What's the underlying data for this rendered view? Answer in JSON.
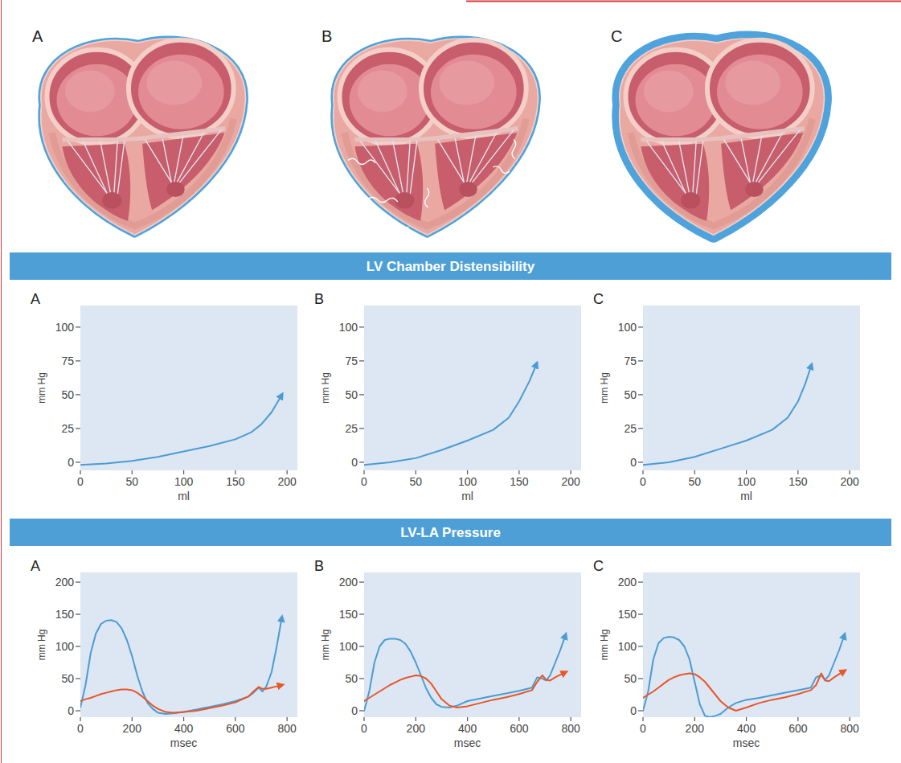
{
  "illustration_labels": [
    "A",
    "B",
    "C"
  ],
  "sections": [
    "LV Chamber Distensibility",
    "LV-LA Pressure"
  ],
  "chart_data": [
    {
      "type": "line",
      "title": "A",
      "xlabel": "ml",
      "ylabel": "mm Hg",
      "x": [
        0,
        25,
        50,
        75,
        100,
        125,
        150,
        165,
        175,
        185,
        195
      ],
      "series": [
        {
          "color": "#4b9cd3",
          "marker": "arrow",
          "values": [
            -2,
            -1,
            1,
            4,
            8,
            12,
            17,
            22,
            28,
            37,
            50
          ]
        }
      ],
      "xlim": [
        0,
        210
      ],
      "xticks": [
        0,
        50,
        100,
        150,
        200
      ],
      "ylim": [
        -6,
        116
      ],
      "yticks": [
        0,
        25,
        50,
        75,
        100
      ],
      "grid": false
    },
    {
      "type": "line",
      "title": "B",
      "xlabel": "ml",
      "ylabel": "mm Hg",
      "x": [
        0,
        25,
        50,
        75,
        100,
        125,
        140,
        150,
        160,
        167
      ],
      "series": [
        {
          "color": "#4b9cd3",
          "marker": "arrow",
          "values": [
            -2,
            0,
            3,
            9,
            16,
            24,
            33,
            45,
            60,
            73
          ]
        }
      ],
      "xlim": [
        0,
        210
      ],
      "xticks": [
        0,
        50,
        100,
        150,
        200
      ],
      "ylim": [
        -6,
        116
      ],
      "yticks": [
        0,
        25,
        50,
        75,
        100
      ],
      "grid": false
    },
    {
      "type": "line",
      "title": "C",
      "xlabel": "ml",
      "ylabel": "mm Hg",
      "x": [
        0,
        25,
        50,
        75,
        100,
        125,
        140,
        150,
        157,
        163
      ],
      "series": [
        {
          "color": "#4b9cd3",
          "marker": "arrow",
          "values": [
            -2,
            0,
            4,
            10,
            16,
            24,
            33,
            45,
            58,
            72
          ]
        }
      ],
      "xlim": [
        0,
        210
      ],
      "xticks": [
        0,
        50,
        100,
        150,
        200
      ],
      "ylim": [
        -6,
        116
      ],
      "yticks": [
        0,
        25,
        50,
        75,
        100
      ],
      "grid": false
    },
    {
      "type": "line",
      "title": "A",
      "xlabel": "msec",
      "ylabel": "mm Hg",
      "x": [
        0,
        20,
        40,
        60,
        80,
        100,
        120,
        140,
        160,
        180,
        200,
        220,
        240,
        260,
        280,
        300,
        330,
        360,
        400,
        450,
        500,
        550,
        600,
        650,
        670,
        690,
        705,
        720,
        740,
        760,
        780
      ],
      "series": [
        {
          "color": "#4b9cd3",
          "marker": "arrow",
          "values": [
            5,
            40,
            90,
            120,
            135,
            140,
            141,
            138,
            128,
            110,
            85,
            55,
            30,
            12,
            3,
            -3,
            -5,
            -4,
            -2,
            2,
            6,
            10,
            15,
            22,
            28,
            36,
            30,
            38,
            60,
            100,
            145
          ]
        },
        {
          "color": "#e8562a",
          "marker": "arrow",
          "values": [
            15,
            18,
            20,
            23,
            26,
            28,
            30,
            32,
            33,
            33,
            32,
            28,
            22,
            15,
            8,
            3,
            -2,
            -3,
            -2,
            0,
            4,
            8,
            13,
            22,
            30,
            37,
            34,
            34,
            36,
            38,
            40
          ]
        }
      ],
      "xlim": [
        0,
        840
      ],
      "xticks": [
        0,
        200,
        400,
        600,
        800
      ],
      "ylim": [
        -10,
        215
      ],
      "yticks": [
        0,
        50,
        100,
        150,
        200
      ],
      "grid": false
    },
    {
      "type": "line",
      "title": "B",
      "xlabel": "msec",
      "ylabel": "mm Hg",
      "x": [
        0,
        20,
        40,
        60,
        80,
        100,
        120,
        140,
        160,
        180,
        200,
        220,
        240,
        260,
        280,
        300,
        330,
        360,
        400,
        450,
        500,
        550,
        600,
        650,
        670,
        690,
        705,
        720,
        740,
        760,
        780
      ],
      "series": [
        {
          "color": "#4b9cd3",
          "marker": "arrow",
          "values": [
            0,
            30,
            75,
            100,
            110,
            112,
            112,
            110,
            104,
            92,
            75,
            55,
            35,
            20,
            10,
            6,
            5,
            8,
            15,
            19,
            23,
            27,
            31,
            36,
            52,
            50,
            47,
            55,
            75,
            95,
            118
          ]
        },
        {
          "color": "#e8562a",
          "marker": "arrow",
          "values": [
            15,
            20,
            25,
            30,
            35,
            40,
            44,
            48,
            51,
            53,
            55,
            54,
            50,
            42,
            30,
            18,
            8,
            5,
            7,
            12,
            17,
            21,
            26,
            32,
            45,
            55,
            48,
            47,
            52,
            56,
            60
          ]
        }
      ],
      "xlim": [
        0,
        840
      ],
      "xticks": [
        0,
        200,
        400,
        600,
        800
      ],
      "ylim": [
        -10,
        215
      ],
      "yticks": [
        0,
        50,
        100,
        150,
        200
      ],
      "grid": false
    },
    {
      "type": "line",
      "title": "C",
      "xlabel": "msec",
      "ylabel": "mm Hg",
      "x": [
        0,
        20,
        40,
        60,
        80,
        100,
        120,
        140,
        160,
        180,
        200,
        220,
        240,
        260,
        280,
        300,
        330,
        360,
        400,
        450,
        500,
        550,
        600,
        650,
        670,
        690,
        705,
        720,
        740,
        760,
        780
      ],
      "series": [
        {
          "color": "#4b9cd3",
          "marker": "arrow",
          "values": [
            0,
            30,
            80,
            105,
            113,
            115,
            114,
            110,
            100,
            80,
            45,
            10,
            -8,
            -10,
            -8,
            -5,
            5,
            12,
            17,
            20,
            24,
            28,
            32,
            36,
            52,
            55,
            48,
            55,
            75,
            95,
            118
          ]
        },
        {
          "color": "#e8562a",
          "marker": "arrow",
          "values": [
            20,
            25,
            30,
            36,
            42,
            48,
            52,
            55,
            57,
            58,
            57,
            52,
            45,
            35,
            25,
            15,
            5,
            0,
            5,
            12,
            17,
            21,
            26,
            32,
            40,
            58,
            47,
            46,
            52,
            57,
            62
          ]
        }
      ],
      "xlim": [
        0,
        840
      ],
      "xticks": [
        0,
        200,
        400,
        600,
        800
      ],
      "ylim": [
        -10,
        215
      ],
      "yticks": [
        0,
        50,
        100,
        150,
        200
      ],
      "grid": false
    }
  ]
}
